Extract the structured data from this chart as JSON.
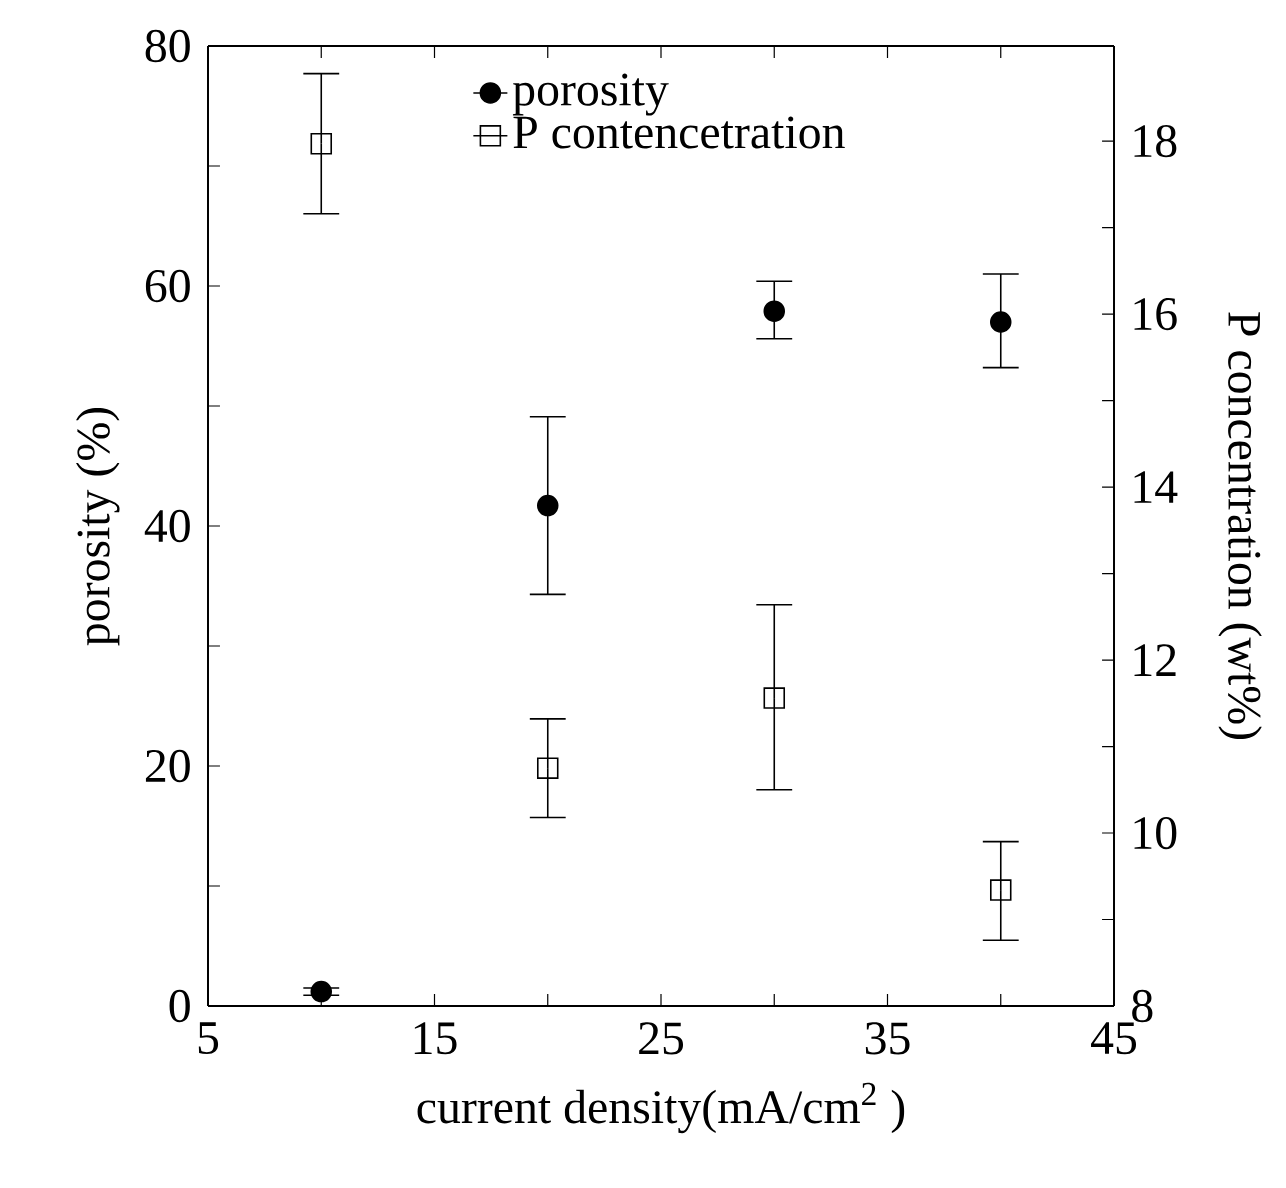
{
  "chart_data": {
    "type": "scatter",
    "xlabel": "current density(mA/cm$^{2}$ )",
    "ylabel": "porosity (%)",
    "y2label": "P concentration (wt%)",
    "x": [
      10,
      20,
      30,
      40
    ],
    "series": [
      {
        "name": "porosity",
        "color": "#000000",
        "marker": "circle",
        "values": [
          1.2,
          41.7,
          57.9,
          57.0
        ],
        "errors": [
          0.3,
          [
            34.3,
            49.1
          ],
          [
            55.6,
            60.4
          ],
          [
            53.2,
            61.0
          ]
        ]
      },
      {
        "name": "P contencetration",
        "color": "#000000",
        "marker": "square",
        "axis": "y2",
        "values": [
          17.97,
          10.75,
          11.56,
          9.34
        ],
        "errors": [
          [
            17.16,
            18.78
          ],
          [
            10.18,
            11.32
          ],
          [
            10.5,
            12.64
          ],
          [
            8.76,
            9.9
          ]
        ]
      }
    ],
    "xlim": [
      5,
      45
    ],
    "xticks": [
      5,
      {
        "value": 10,
        "label": null
      },
      15,
      {
        "value": 20,
        "label": null
      },
      25,
      {
        "value": 30,
        "label": null
      },
      35,
      {
        "value": 40,
        "label": null
      },
      45
    ],
    "ylim": [
      0,
      80
    ],
    "yticks": [
      0,
      {
        "value": 10,
        "label": null
      },
      20,
      {
        "value": 30,
        "label": null
      },
      40,
      {
        "value": 50,
        "label": null
      },
      60,
      {
        "value": 70,
        "label": null
      },
      80
    ],
    "y2lim": [
      8,
      19.1
    ],
    "y2ticks": [
      8,
      {
        "value": 9,
        "label": null
      },
      10,
      {
        "value": 11,
        "label": null
      },
      12,
      {
        "value": 13,
        "label": null
      },
      14,
      {
        "value": 15,
        "label": null
      },
      16,
      {
        "value": 17,
        "label": null
      },
      18
    ],
    "legend": "top",
    "grid": false
  }
}
